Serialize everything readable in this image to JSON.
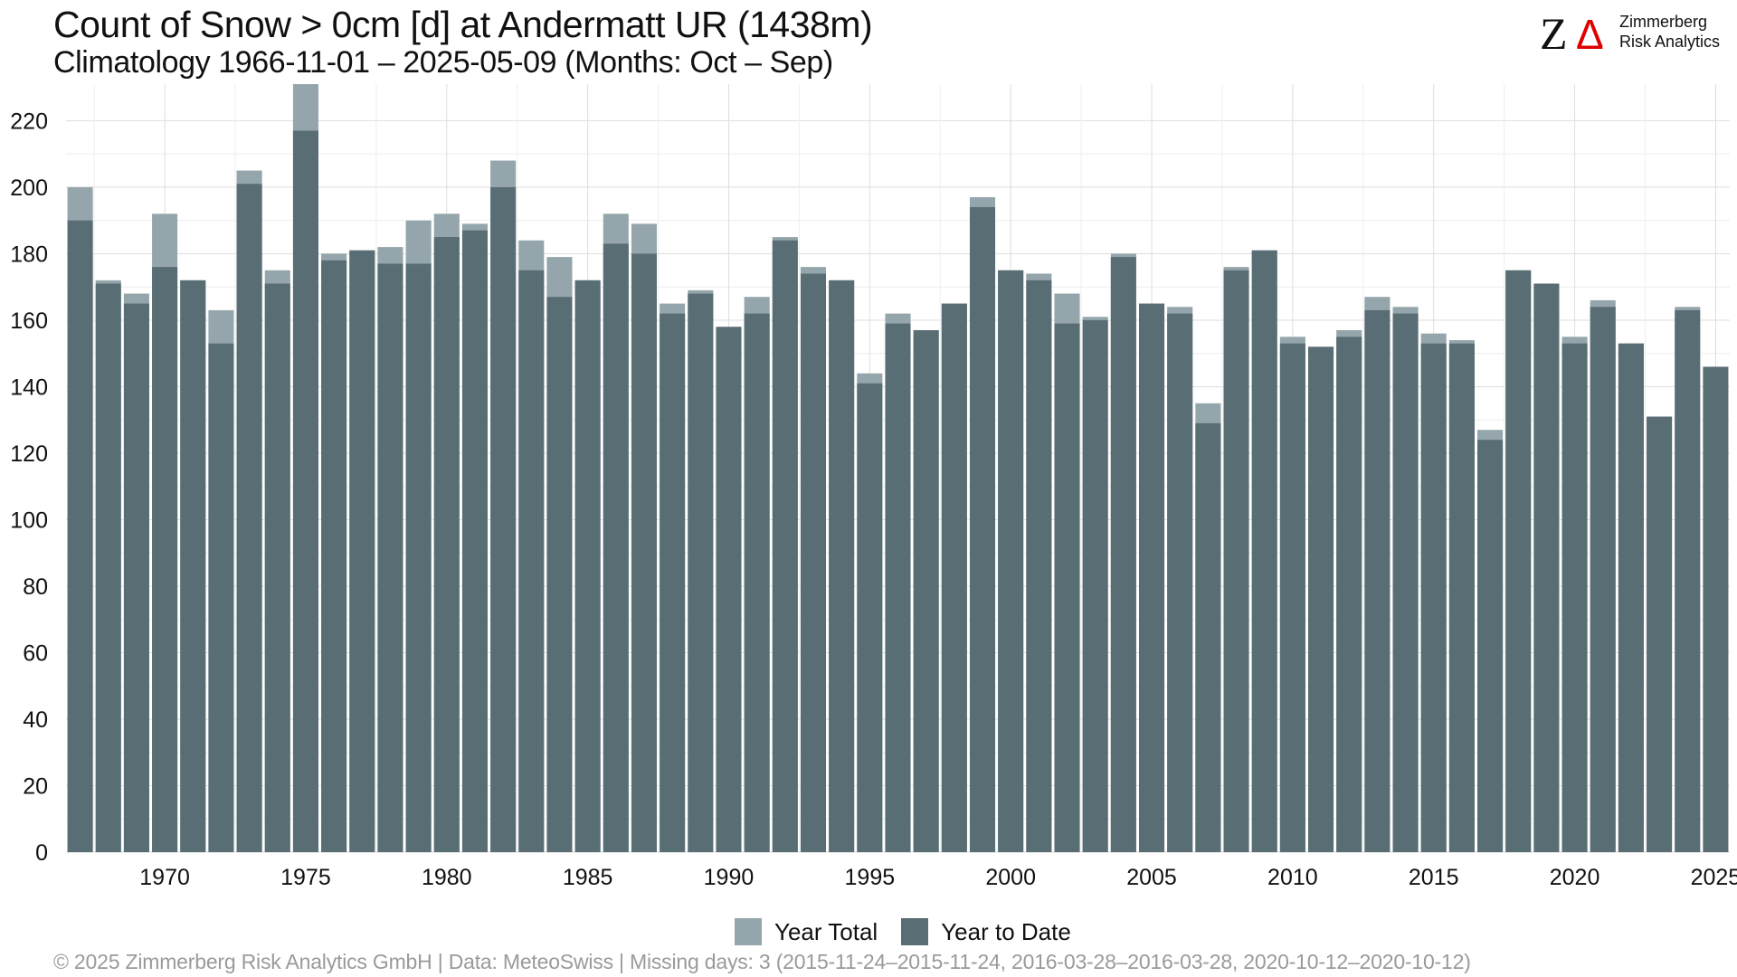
{
  "header": {
    "title": "Count of Snow > 0cm [d] at Andermatt  UR (1438m)",
    "subtitle": "Climatology 1966-11-01 – 2025-05-09 (Months: Oct – Sep)"
  },
  "logo": {
    "mark_z": "Z",
    "mark_delta": "Δ",
    "line1": "Zimmerberg",
    "line2": "Risk Analytics",
    "z_color": "#111111",
    "delta_color": "#e00000"
  },
  "footer": {
    "text": "© 2025 Zimmerberg Risk Analytics GmbH | Data: MeteoSwiss | Missing days: 3 (2015-11-24–2015-11-24, 2016-03-28–2016-03-28, 2020-10-12–2020-10-12)"
  },
  "colors": {
    "year_total": "#94a5ab",
    "year_to_date": "#596d74",
    "grid": "#dedede",
    "text": "#111111"
  },
  "chart_data": {
    "type": "bar",
    "title": "Count of Snow > 0cm [d] at Andermatt  UR (1438m)",
    "subtitle": "Climatology 1966-11-01 – 2025-05-09 (Months: Oct – Sep)",
    "xlabel": "",
    "ylabel": "",
    "ylim": [
      0,
      231
    ],
    "xlim": [
      1966.5,
      2025.5
    ],
    "y_ticks": [
      0,
      20,
      40,
      60,
      80,
      100,
      120,
      140,
      160,
      180,
      200,
      220
    ],
    "x_ticks": [
      1970,
      1975,
      1980,
      1985,
      1990,
      1995,
      2000,
      2005,
      2010,
      2015,
      2020,
      2025
    ],
    "grid": true,
    "legend_position": "bottom",
    "bar_mode": "overlay",
    "categories": [
      1967,
      1968,
      1969,
      1970,
      1971,
      1972,
      1973,
      1974,
      1975,
      1976,
      1977,
      1978,
      1979,
      1980,
      1981,
      1982,
      1983,
      1984,
      1985,
      1986,
      1987,
      1988,
      1989,
      1990,
      1991,
      1992,
      1993,
      1994,
      1995,
      1996,
      1997,
      1998,
      1999,
      2000,
      2001,
      2002,
      2003,
      2004,
      2005,
      2006,
      2007,
      2008,
      2009,
      2010,
      2011,
      2012,
      2013,
      2014,
      2015,
      2016,
      2017,
      2018,
      2019,
      2020,
      2021,
      2022,
      2023,
      2024,
      2025
    ],
    "series": [
      {
        "name": "Year Total",
        "color": "#94a5ab",
        "values": [
          200,
          172,
          168,
          192,
          172,
          163,
          205,
          175,
          231,
          180,
          181,
          182,
          190,
          192,
          189,
          208,
          184,
          179,
          172,
          192,
          189,
          165,
          169,
          158,
          167,
          185,
          176,
          172,
          144,
          162,
          157,
          165,
          197,
          175,
          174,
          168,
          161,
          180,
          165,
          164,
          135,
          176,
          181,
          155,
          152,
          157,
          167,
          164,
          156,
          154,
          127,
          175,
          171,
          155,
          166,
          153,
          131,
          164,
          null
        ]
      },
      {
        "name": "Year to Date",
        "color": "#596d74",
        "values": [
          190,
          171,
          165,
          176,
          172,
          153,
          201,
          171,
          217,
          178,
          181,
          177,
          177,
          185,
          187,
          200,
          175,
          167,
          172,
          183,
          180,
          162,
          168,
          158,
          162,
          184,
          174,
          172,
          141,
          159,
          157,
          165,
          194,
          175,
          172,
          159,
          160,
          179,
          165,
          162,
          129,
          175,
          181,
          153,
          152,
          155,
          163,
          162,
          153,
          153,
          124,
          175,
          171,
          153,
          164,
          153,
          131,
          163,
          146
        ]
      }
    ]
  }
}
